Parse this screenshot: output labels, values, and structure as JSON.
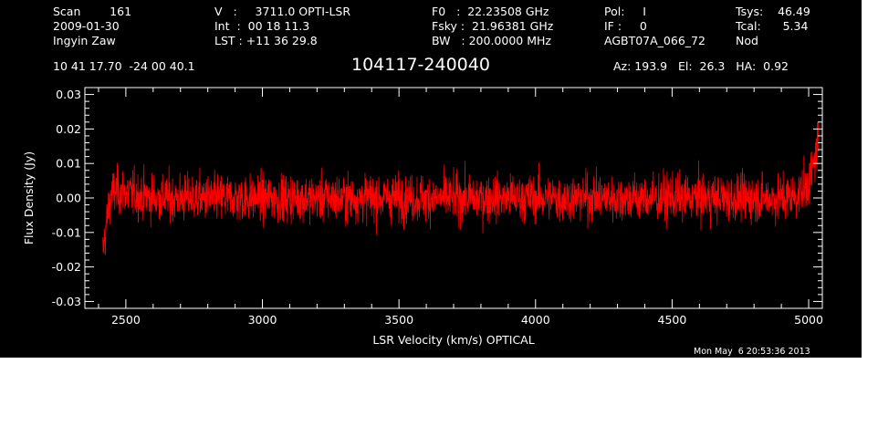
{
  "header": {
    "col1": {
      "line1": "Scan        161",
      "line2": "2009-01-30",
      "line3": "Ingyin Zaw"
    },
    "col2": {
      "line1": "V   :     3711.0 OPTI-LSR",
      "line2": "Int  :  00 18 11.3",
      "line3": "LST : +11 36 29.8"
    },
    "col3": {
      "line1": "F0   :  22.23508 GHz",
      "line2": "Fsky :  21.96381 GHz",
      "line3": "BW   : 200.0000 MHz"
    },
    "col4": {
      "line1": "Pol:     I",
      "line2": "IF :     0",
      "line3": "AGBT07A_066_72"
    },
    "col5": {
      "line1": "Tsys:    46.49",
      "line2": "Tcal:      5.34",
      "line3": "Nod"
    },
    "coords": "10 41 17.70  -24 00 40.1",
    "source": "104117-240040",
    "azelha": "Az: 193.9   El:  26.3   HA:  0.92"
  },
  "footer": {
    "timestamp": "Mon May  6 20:53:36 2013"
  },
  "colors": {
    "background": "#000000",
    "series": "#ff0000",
    "axes": "#ffffff"
  },
  "chart_data": {
    "type": "line",
    "xlabel": "LSR Velocity (km/s) OPTICAL",
    "ylabel": "Flux Density (Jy)",
    "xlim": [
      2350,
      5050
    ],
    "ylim": [
      -0.032,
      0.032
    ],
    "x_ticks": [
      "2500",
      "3000",
      "3500",
      "4000",
      "4500",
      "5000"
    ],
    "x_tick_values": [
      2500,
      3000,
      3500,
      4000,
      4500,
      5000
    ],
    "y_ticks": [
      "0.03",
      "0.02",
      "0.01",
      "0.00",
      "-0.01",
      "-0.02",
      "-0.03"
    ],
    "y_tick_values": [
      0.03,
      0.02,
      0.01,
      0.0,
      -0.01,
      -0.02,
      -0.03
    ],
    "series": [
      {
        "x_range": [
          2415,
          5035
        ],
        "noise_rms": 0.0048,
        "envelope": [
          {
            "x": 2415,
            "y": -0.016
          },
          {
            "x": 2425,
            "y": -0.01
          },
          {
            "x": 2435,
            "y": -0.004
          },
          {
            "x": 2445,
            "y": 0.001
          },
          {
            "x": 2470,
            "y": 0.002
          },
          {
            "x": 2600,
            "y": 0.0
          },
          {
            "x": 3500,
            "y": 0.0
          },
          {
            "x": 4900,
            "y": 0.0
          },
          {
            "x": 4960,
            "y": 0.001
          },
          {
            "x": 5000,
            "y": 0.004
          },
          {
            "x": 5020,
            "y": 0.01
          },
          {
            "x": 5035,
            "y": 0.017
          }
        ]
      }
    ]
  }
}
